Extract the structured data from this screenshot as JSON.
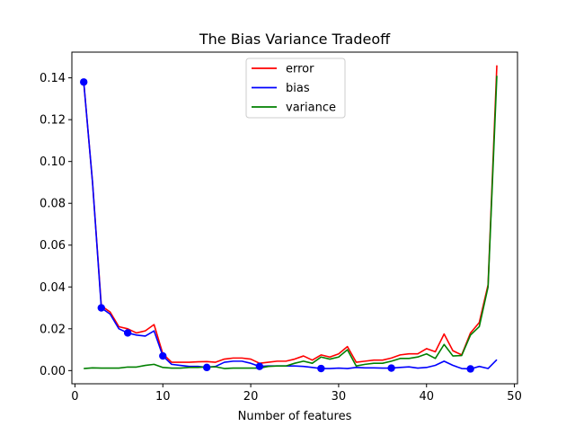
{
  "chart_data": {
    "type": "line",
    "title": "The Bias Variance Tradeoff",
    "xlabel": "Number of features",
    "ylabel": "",
    "xlim": [
      -0.35,
      50.35
    ],
    "ylim": [
      -0.0063,
      0.1523
    ],
    "xticks": [
      0,
      10,
      20,
      30,
      40,
      50
    ],
    "xtick_labels": [
      "0",
      "10",
      "20",
      "30",
      "40",
      "50"
    ],
    "yticks": [
      0.0,
      0.02,
      0.04,
      0.06,
      0.08,
      0.1,
      0.12,
      0.14
    ],
    "ytick_labels": [
      "0.00",
      "0.02",
      "0.04",
      "0.06",
      "0.08",
      "0.10",
      "0.12",
      "0.14"
    ],
    "legend": {
      "position": "upper-center",
      "entries": [
        "error",
        "bias",
        "variance"
      ]
    },
    "grid": false,
    "x": [
      1,
      2,
      3,
      4,
      5,
      6,
      7,
      8,
      9,
      10,
      11,
      12,
      13,
      14,
      15,
      16,
      17,
      18,
      19,
      20,
      21,
      22,
      23,
      24,
      25,
      26,
      27,
      28,
      29,
      30,
      31,
      32,
      33,
      34,
      35,
      36,
      37,
      38,
      39,
      40,
      41,
      42,
      43,
      44,
      45,
      46,
      47,
      48
    ],
    "series": [
      {
        "name": "error",
        "color": "#ff0000",
        "values": [
          0.138,
          0.09,
          0.031,
          0.028,
          0.021,
          0.02,
          0.018,
          0.019,
          0.022,
          0.008,
          0.004,
          0.004,
          0.004,
          0.0042,
          0.0043,
          0.004,
          0.0055,
          0.006,
          0.006,
          0.0055,
          0.0035,
          0.004,
          0.0045,
          0.0045,
          0.0055,
          0.007,
          0.005,
          0.0075,
          0.0065,
          0.008,
          0.0115,
          0.004,
          0.0045,
          0.005,
          0.005,
          0.006,
          0.0075,
          0.008,
          0.008,
          0.0105,
          0.009,
          0.0175,
          0.0095,
          0.0075,
          0.018,
          0.023,
          0.041,
          0.146
        ]
      },
      {
        "name": "bias",
        "color": "#0000ff",
        "values": [
          0.138,
          0.09,
          0.03,
          0.027,
          0.02,
          0.018,
          0.017,
          0.0165,
          0.019,
          0.007,
          0.003,
          0.0025,
          0.002,
          0.002,
          0.0015,
          0.002,
          0.004,
          0.0045,
          0.0045,
          0.0035,
          0.002,
          0.0022,
          0.0022,
          0.0022,
          0.0022,
          0.002,
          0.0015,
          0.001,
          0.001,
          0.0012,
          0.001,
          0.0015,
          0.0013,
          0.0013,
          0.0012,
          0.0012,
          0.0015,
          0.0018,
          0.0012,
          0.0015,
          0.0025,
          0.0045,
          0.0025,
          0.001,
          0.0008,
          0.002,
          0.001,
          0.0052
        ]
      },
      {
        "name": "variance",
        "color": "#008000",
        "values": [
          0.001,
          0.0013,
          0.0012,
          0.0012,
          0.0012,
          0.0017,
          0.0017,
          0.0025,
          0.003,
          0.0015,
          0.0012,
          0.0012,
          0.0015,
          0.0015,
          0.0018,
          0.0018,
          0.001,
          0.0012,
          0.0012,
          0.0012,
          0.0012,
          0.002,
          0.0022,
          0.0022,
          0.0035,
          0.0045,
          0.0035,
          0.0065,
          0.0055,
          0.0065,
          0.01,
          0.0022,
          0.003,
          0.0035,
          0.0035,
          0.0045,
          0.0058,
          0.0058,
          0.0065,
          0.008,
          0.0058,
          0.0125,
          0.007,
          0.0072,
          0.017,
          0.021,
          0.04,
          0.141
        ]
      }
    ],
    "markers": {
      "series": "bias",
      "color": "#0000ff",
      "x": [
        1,
        3,
        6,
        10,
        15,
        21,
        28,
        36,
        45
      ],
      "y": [
        0.138,
        0.03,
        0.018,
        0.007,
        0.0015,
        0.002,
        0.001,
        0.0012,
        0.0008
      ]
    }
  }
}
